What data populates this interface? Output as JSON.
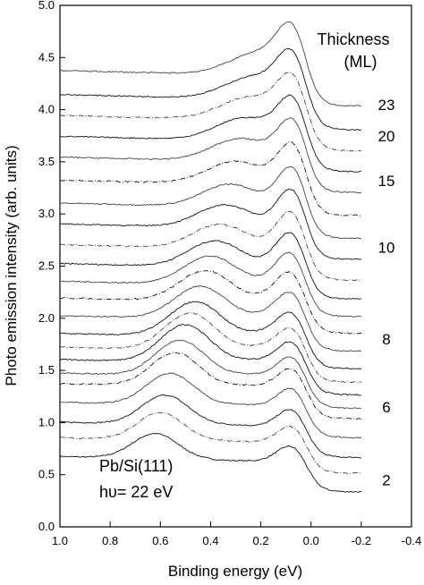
{
  "chart_data": {
    "type": "line",
    "title": "",
    "xlabel": "Binding energy (eV)",
    "ylabel": "Photo emission intensity (arb. units)",
    "xlim": [
      1.0,
      -0.4
    ],
    "ylim": [
      0.0,
      5.0
    ],
    "x_ticks": [
      "1.0",
      "0.8",
      "0.6",
      "0.4",
      "0.2",
      "0.0",
      "-0.2",
      "-0.4"
    ],
    "y_ticks": [
      "0.0",
      "0.5",
      "1.0",
      "1.5",
      "2.0",
      "2.5",
      "3.0",
      "3.5",
      "4.0",
      "4.5",
      "5.0"
    ],
    "grid": false,
    "legend_title": "Thickness",
    "legend_unit": "(ML)",
    "series_labels": [
      "23",
      "20",
      "15",
      "10",
      "8",
      "6",
      "2"
    ],
    "annotation_sample": "Pb/Si(111)",
    "annotation_energy": "hυ= 22 eV",
    "n_curves": 22,
    "curve_start_x": 1.0,
    "curve_end_x": -0.2,
    "curve_offsets": [
      0.45,
      0.63,
      0.78,
      0.97,
      1.15,
      1.25,
      1.38,
      1.5,
      1.63,
      1.8,
      1.97,
      2.13,
      2.3,
      2.48,
      2.68,
      2.88,
      3.1,
      3.32,
      3.52,
      3.72,
      3.92,
      4.15
    ],
    "label_values_y": [
      4.05,
      3.75,
      3.32,
      2.68,
      1.8,
      1.15,
      0.45
    ]
  }
}
